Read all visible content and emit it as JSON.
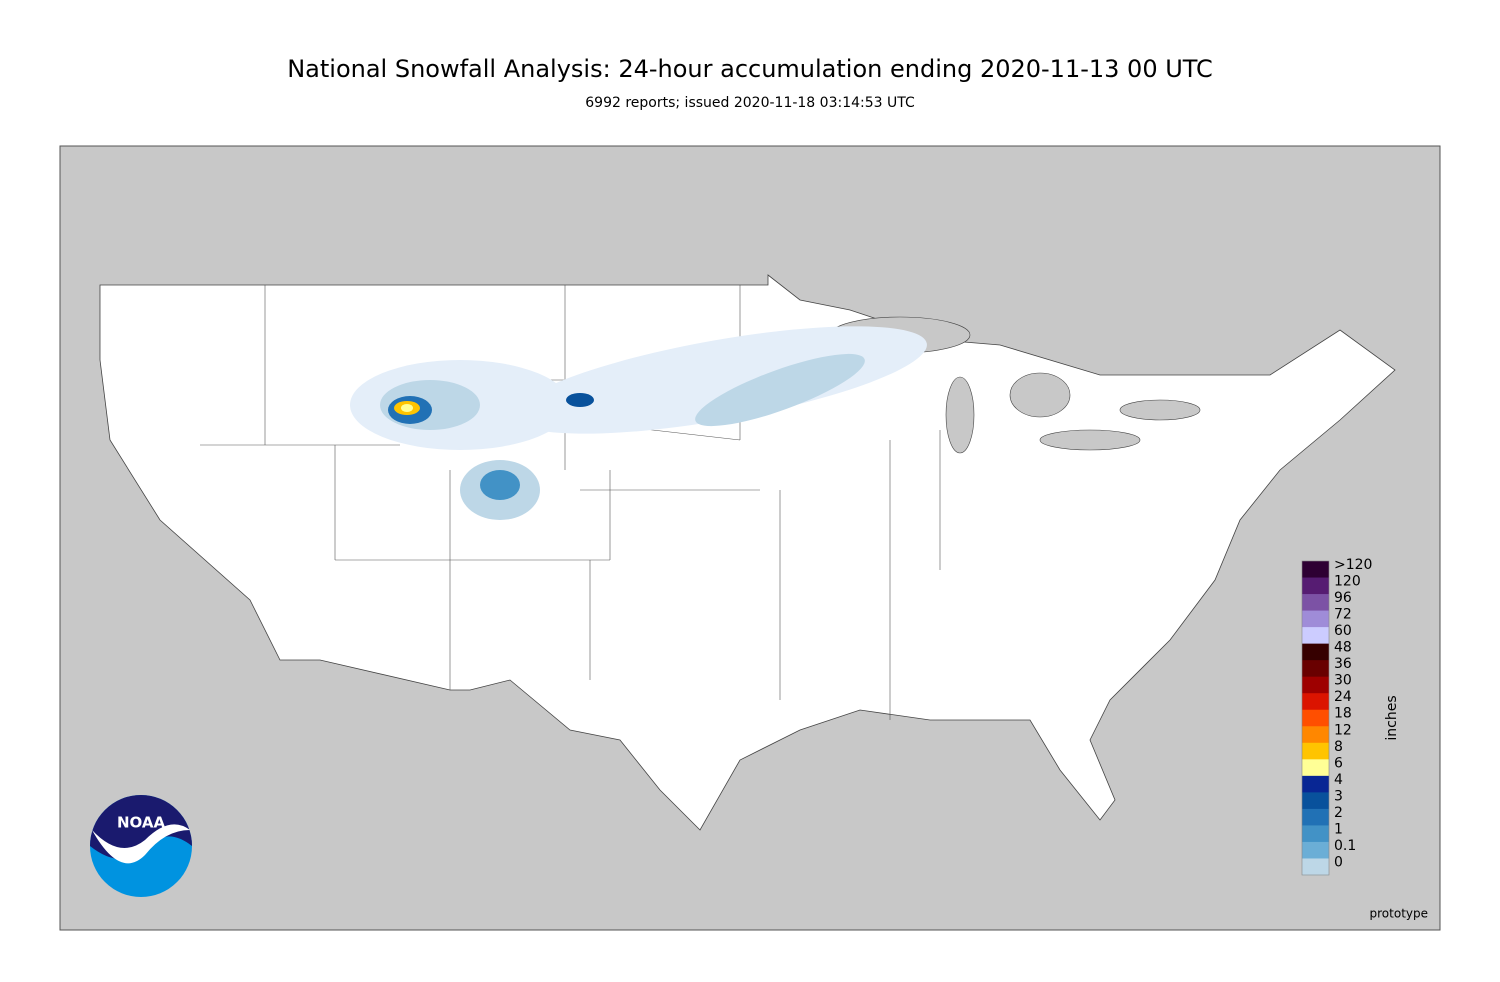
{
  "header": {
    "title": "National Snowfall Analysis: 24-hour accumulation ending 2020-11-13 00 UTC",
    "subtitle": "6992 reports; issued 2020-11-18 03:14:53 UTC"
  },
  "legend": {
    "unit": "inches",
    "items": [
      {
        "label": ">120",
        "color": "#2e0033"
      },
      {
        "label": "120",
        "color": "#561c72"
      },
      {
        "label": "96",
        "color": "#7c52a5"
      },
      {
        "label": "72",
        "color": "#9f8cd8"
      },
      {
        "label": "60",
        "color": "#ccccff"
      },
      {
        "label": "48",
        "color": "#360000"
      },
      {
        "label": "36",
        "color": "#690000"
      },
      {
        "label": "30",
        "color": "#9e0000"
      },
      {
        "label": "24",
        "color": "#db1400"
      },
      {
        "label": "18",
        "color": "#ff4f00"
      },
      {
        "label": "12",
        "color": "#ff8700"
      },
      {
        "label": "8",
        "color": "#ffc400"
      },
      {
        "label": "6",
        "color": "#ffff96"
      },
      {
        "label": "4",
        "color": "#082694"
      },
      {
        "label": "3",
        "color": "#08519c"
      },
      {
        "label": "2",
        "color": "#2171b5"
      },
      {
        "label": "1",
        "color": "#4292c6"
      },
      {
        "label": "0.1",
        "color": "#6baed6"
      },
      {
        "label": "0",
        "color": "#bdd7e7"
      }
    ]
  },
  "logo": {
    "text": "NOAA"
  },
  "footer": {
    "note": "prototype"
  }
}
